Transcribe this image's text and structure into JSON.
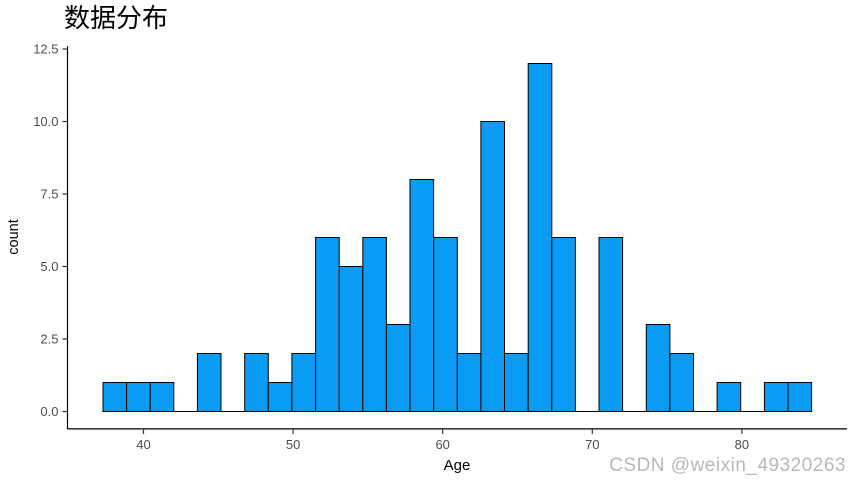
{
  "title": "数据分布",
  "watermark": "CSDN @weixin_49320263",
  "chart_data": {
    "type": "bar",
    "subtype": "histogram",
    "title": "数据分布",
    "xlabel": "Age",
    "ylabel": "count",
    "bins": {
      "start": 37.29,
      "width": 1.579,
      "count": 30
    },
    "counts": [
      1,
      1,
      1,
      0,
      2,
      0,
      2,
      1,
      2,
      6,
      5,
      6,
      3,
      8,
      6,
      2,
      10,
      2,
      12,
      6,
      0,
      6,
      0,
      3,
      2,
      0,
      1,
      0,
      1,
      1
    ],
    "total_n": 90,
    "x_ticks": {
      "values": [
        40,
        50,
        60,
        70,
        80
      ],
      "labels": [
        "40",
        "50",
        "60",
        "70",
        "80"
      ]
    },
    "y_ticks": {
      "values": [
        0,
        2.5,
        5,
        7.5,
        10,
        12.5
      ],
      "labels": [
        "0.0",
        "2.5",
        "5.0",
        "7.5",
        "10.0",
        "12.5"
      ]
    },
    "xlim": [
      34.92,
      87.03
    ],
    "ylim": [
      -0.6,
      12.6
    ],
    "grid": false,
    "legend": "none",
    "colors": {
      "bar_fill": "#0a9cf5",
      "bar_stroke": "#000000",
      "axis_line": "#000000",
      "tick_mark": "#333333",
      "tick_label": "#4d4d4d",
      "axis_title": "#000000",
      "title": "#000000",
      "watermark": "#b9b9b9",
      "background": "#ffffff"
    }
  }
}
